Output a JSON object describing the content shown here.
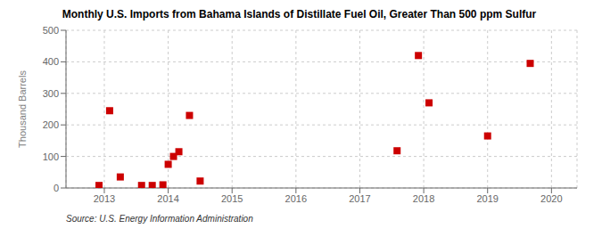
{
  "chart_data": {
    "type": "scatter",
    "title": "Monthly U.S. Imports from Bahama Islands of Distillate Fuel Oil, Greater Than 500 ppm Sulfur",
    "y_label": "Thousand Barrels",
    "annotations": [
      "Source: U.S. Energy Information Administration"
    ],
    "color": "#cc0000",
    "marker": "square",
    "grid": true,
    "xlim": [
      2012.4,
      2020.4
    ],
    "ylim": [
      0,
      500
    ],
    "xticks": [
      2013,
      2014,
      2015,
      2016,
      2017,
      2018,
      2019,
      2020
    ],
    "yticks": [
      0,
      100,
      200,
      300,
      400,
      500
    ],
    "x": [
      2012.917,
      2013.083,
      2013.25,
      2013.583,
      2013.75,
      2013.917,
      2014.0,
      2014.083,
      2014.167,
      2014.333,
      2014.5,
      2017.583,
      2017.917,
      2018.083,
      2019.0,
      2019.667
    ],
    "values": [
      8,
      245,
      35,
      8,
      8,
      10,
      75,
      100,
      115,
      230,
      22,
      118,
      420,
      270,
      165,
      395
    ]
  }
}
